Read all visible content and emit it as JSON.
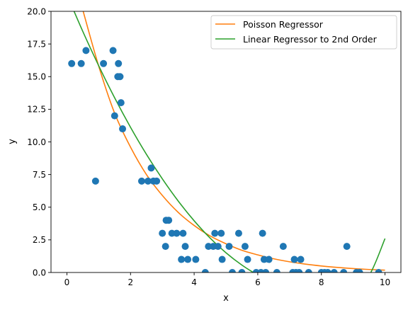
{
  "chart_data": {
    "type": "scatter",
    "xlabel": "x",
    "ylabel": "y",
    "xlim": [
      -0.5,
      10.5
    ],
    "ylim": [
      0,
      20
    ],
    "xticks": [
      0,
      2,
      4,
      6,
      8,
      10
    ],
    "yticks": [
      0.0,
      2.5,
      5.0,
      7.5,
      10.0,
      12.5,
      15.0,
      17.5,
      20.0
    ],
    "grid": false,
    "legend_position": "top-right",
    "scatter": {
      "color": "#1f77b4",
      "points": [
        [
          0.15,
          16
        ],
        [
          0.45,
          16
        ],
        [
          0.6,
          17
        ],
        [
          0.9,
          7
        ],
        [
          1.15,
          16
        ],
        [
          1.45,
          17
        ],
        [
          1.5,
          12
        ],
        [
          1.6,
          15
        ],
        [
          1.62,
          16
        ],
        [
          1.67,
          15
        ],
        [
          1.7,
          13
        ],
        [
          1.75,
          11
        ],
        [
          2.35,
          7
        ],
        [
          2.55,
          7
        ],
        [
          2.65,
          8
        ],
        [
          2.72,
          7
        ],
        [
          2.82,
          7
        ],
        [
          3.0,
          3
        ],
        [
          3.1,
          2
        ],
        [
          3.12,
          4
        ],
        [
          3.2,
          4
        ],
        [
          3.3,
          3
        ],
        [
          3.45,
          3
        ],
        [
          3.6,
          1
        ],
        [
          3.65,
          3
        ],
        [
          3.72,
          2
        ],
        [
          3.8,
          1
        ],
        [
          4.05,
          1
        ],
        [
          4.35,
          0
        ],
        [
          4.45,
          2
        ],
        [
          4.6,
          2
        ],
        [
          4.65,
          3
        ],
        [
          4.75,
          2
        ],
        [
          4.85,
          3
        ],
        [
          4.88,
          1
        ],
        [
          5.1,
          2
        ],
        [
          5.2,
          0
        ],
        [
          5.4,
          3
        ],
        [
          5.5,
          0
        ],
        [
          5.6,
          2
        ],
        [
          5.68,
          1
        ],
        [
          5.95,
          0
        ],
        [
          6.1,
          0
        ],
        [
          6.15,
          3
        ],
        [
          6.2,
          1
        ],
        [
          6.25,
          0
        ],
        [
          6.35,
          1
        ],
        [
          6.6,
          0
        ],
        [
          6.8,
          2
        ],
        [
          7.1,
          0
        ],
        [
          7.15,
          1
        ],
        [
          7.2,
          0
        ],
        [
          7.3,
          0
        ],
        [
          7.35,
          1
        ],
        [
          7.6,
          0
        ],
        [
          8.0,
          0
        ],
        [
          8.1,
          0
        ],
        [
          8.2,
          0
        ],
        [
          8.4,
          0
        ],
        [
          8.7,
          0
        ],
        [
          8.8,
          2
        ],
        [
          9.1,
          0
        ],
        [
          9.2,
          0
        ],
        [
          9.8,
          0
        ]
      ]
    },
    "series": [
      {
        "name": "Poisson Regressor",
        "color": "#ff7f0e",
        "type": "line",
        "x": [
          0.5,
          1,
          1.5,
          2,
          2.5,
          3,
          3.5,
          4,
          4.5,
          5,
          5.5,
          6,
          6.5,
          7,
          7.5,
          8,
          8.5,
          9,
          9.5,
          10
        ],
        "y": [
          20.1,
          15.8,
          12.2,
          9.6,
          7.5,
          5.9,
          4.6,
          3.6,
          2.8,
          2.2,
          1.7,
          1.35,
          1.05,
          0.82,
          0.64,
          0.5,
          0.39,
          0.3,
          0.23,
          0.18
        ]
      },
      {
        "name": "Linear Regressor to 2nd Order",
        "color": "#2ca02c",
        "type": "line",
        "x": [
          0,
          0.5,
          1,
          1.5,
          2,
          2.5,
          3,
          3.5,
          4,
          4.5,
          5,
          5.5,
          6,
          6.5,
          7,
          7.5,
          8,
          8.5,
          9,
          9.5,
          10
        ],
        "y": [
          21.28,
          18.46,
          15.83,
          13.38,
          11.12,
          9.05,
          7.17,
          5.47,
          3.96,
          2.64,
          1.51,
          0.57,
          -0.19,
          -0.76,
          -1.14,
          -1.34,
          -1.34,
          -1.15,
          -0.77,
          -0.21,
          2.6
        ]
      }
    ]
  }
}
